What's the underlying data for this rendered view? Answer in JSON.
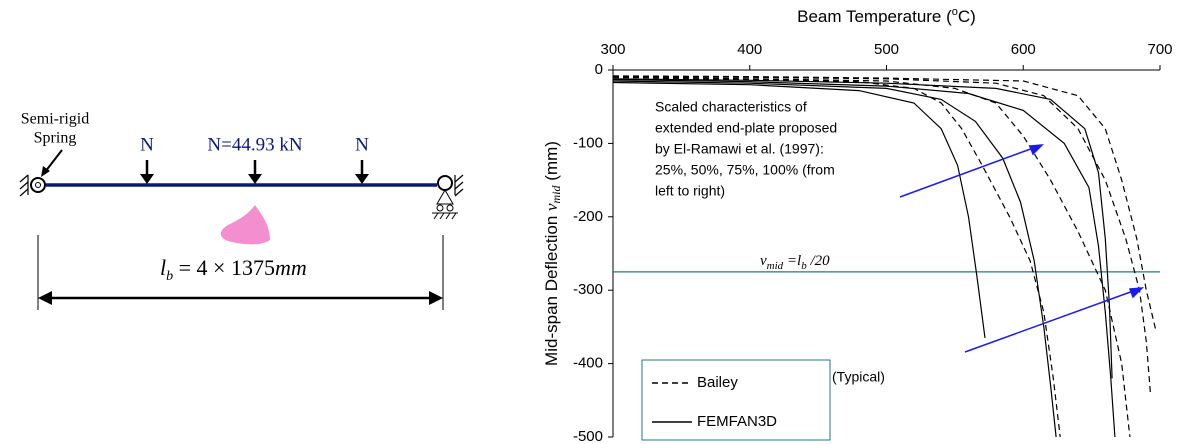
{
  "diagram": {
    "spring_label": [
      "Semi-rigid",
      "Spring"
    ],
    "loads": [
      "N",
      "N=44.93 kN",
      "N"
    ],
    "length_label": [
      "l",
      "b",
      " = 4 × 1375",
      "mm"
    ]
  },
  "chart_data": {
    "type": "line",
    "title": [
      "Beam Temperature (",
      "o",
      "C)"
    ],
    "y_label": [
      "Mid-span Deflection ",
      "v",
      "mid",
      " (mm)"
    ],
    "xlim": [
      300,
      700
    ],
    "xticks": [
      300,
      400,
      500,
      600,
      700
    ],
    "ylim": [
      -500,
      0
    ],
    "yticks": [
      0,
      -100,
      -200,
      -300,
      -400,
      -500
    ],
    "reference_line": {
      "value": -275,
      "label": [
        "v",
        "mid",
        " =",
        "l",
        "b",
        " /20"
      ],
      "color": "#1f7a80"
    },
    "annotations": [
      {
        "lines": [
          "Scaled characteristics of",
          "extended end-plate proposed",
          "by El-Ramawi et al. (1997):",
          "25%, 50%, 75%, 100% (from",
          "left to right)"
        ]
      },
      {
        "lines": [
          "(Typical)"
        ]
      }
    ],
    "series": [
      {
        "name": "Bailey",
        "color": "#000000",
        "dash": true,
        "x": [
          300,
          400,
          480,
          520,
          540,
          555,
          570,
          590,
          605,
          615,
          622,
          627
        ],
        "values": [
          -12,
          -13,
          -16,
          -25,
          -45,
          -80,
          -130,
          -200,
          -260,
          -330,
          -420,
          -500
        ]
      },
      {
        "name": "FEMFAN3D",
        "color": "#000000",
        "dash": false,
        "x": [
          300,
          400,
          480,
          520,
          540,
          552,
          560,
          566,
          572
        ],
        "values": [
          -17,
          -20,
          -28,
          -45,
          -80,
          -130,
          -200,
          -280,
          -365
        ]
      },
      {
        "color": "#000000",
        "dash": true,
        "x": [
          300,
          400,
          500,
          550,
          580,
          600,
          620,
          640,
          660,
          672,
          678
        ],
        "values": [
          -10,
          -12,
          -15,
          -25,
          -45,
          -90,
          -150,
          -220,
          -300,
          -400,
          -500
        ]
      },
      {
        "color": "#000000",
        "dash": false,
        "x": [
          300,
          400,
          500,
          540,
          565,
          585,
          598,
          608,
          615,
          620,
          624
        ],
        "values": [
          -15,
          -18,
          -25,
          -40,
          -70,
          -120,
          -180,
          -260,
          -350,
          -430,
          -500
        ]
      },
      {
        "color": "#000000",
        "dash": true,
        "x": [
          300,
          400,
          500,
          580,
          615,
          640,
          660,
          675,
          685,
          690,
          693
        ],
        "values": [
          -9,
          -10,
          -12,
          -18,
          -35,
          -80,
          -150,
          -230,
          -300,
          -370,
          -440
        ]
      },
      {
        "color": "#000000",
        "dash": false,
        "x": [
          300,
          400,
          500,
          560,
          600,
          630,
          648,
          655,
          660,
          664,
          667
        ],
        "values": [
          -13,
          -16,
          -22,
          -32,
          -55,
          -100,
          -160,
          -240,
          -330,
          -420,
          -500
        ]
      },
      {
        "color": "#000000",
        "dash": true,
        "x": [
          300,
          400,
          500,
          600,
          640,
          660,
          672,
          683,
          690,
          697
        ],
        "values": [
          -8,
          -9,
          -11,
          -15,
          -35,
          -80,
          -150,
          -230,
          -300,
          -355
        ]
      },
      {
        "color": "#000000",
        "dash": false,
        "x": [
          300,
          400,
          500,
          580,
          620,
          645,
          655,
          660,
          663,
          665
        ],
        "values": [
          -12,
          -14,
          -18,
          -25,
          -40,
          -80,
          -140,
          -230,
          -320,
          -420
        ]
      }
    ]
  }
}
